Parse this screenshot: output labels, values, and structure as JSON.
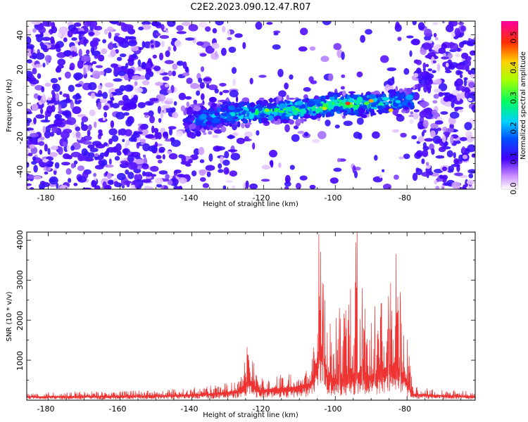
{
  "chart_data": [
    {
      "type": "heatmap",
      "title": "C2E2.2023.090.12.47.R07",
      "xlabel": "Height of straight line (km)",
      "ylabel": "Frequency (Hz)",
      "xlim": [
        -186,
        -61
      ],
      "ylim": [
        -50,
        48
      ],
      "xticks": [
        "-180",
        "-160",
        "-140",
        "-120",
        "-100",
        "-80"
      ],
      "yticks": [
        "40",
        "20",
        "0",
        "-20",
        "-40"
      ],
      "colorbar": {
        "label": "Normalized spectral amplitude",
        "range": [
          0.0,
          0.55
        ],
        "ticks": [
          "0.0",
          "0.1",
          "0.2",
          "0.3",
          "0.4",
          "0.5"
        ]
      },
      "band": [
        {
          "x": -186,
          "center": 0,
          "width": 45,
          "strength": 0.12
        },
        {
          "x": -140,
          "center": -10,
          "width": 12,
          "strength": 0.18
        },
        {
          "x": -130,
          "center": -6,
          "width": 9,
          "strength": 0.25
        },
        {
          "x": -120,
          "center": -5,
          "width": 8,
          "strength": 0.28
        },
        {
          "x": -110,
          "center": -3,
          "width": 8,
          "strength": 0.3
        },
        {
          "x": -100,
          "center": -1,
          "width": 8,
          "strength": 0.33
        },
        {
          "x": -90,
          "center": 0,
          "width": 8,
          "strength": 0.3
        },
        {
          "x": -80,
          "center": 2,
          "width": 8,
          "strength": 0.22
        },
        {
          "x": -61,
          "center": 0,
          "width": 45,
          "strength": 0.1
        }
      ],
      "grid": true
    },
    {
      "type": "line",
      "title": "",
      "xlabel": "Height of straight line (km)",
      "ylabel": "SNR (10 * v/v)",
      "xlim": [
        -186,
        -61
      ],
      "ylim": [
        0,
        4200
      ],
      "xticks": [
        "-180",
        "-160",
        "-140",
        "-120",
        "-100",
        "-80"
      ],
      "yticks": [
        "4000",
        "3000",
        "2000",
        "1000"
      ],
      "series": [
        {
          "color": "#ee3333",
          "envelope": [
            {
              "x": -186,
              "base": 90,
              "peak": 200
            },
            {
              "x": -150,
              "base": 110,
              "peak": 250
            },
            {
              "x": -135,
              "base": 160,
              "peak": 380
            },
            {
              "x": -127,
              "base": 230,
              "peak": 480
            },
            {
              "x": -124,
              "base": 500,
              "peak": 1300
            },
            {
              "x": -121,
              "base": 250,
              "peak": 560
            },
            {
              "x": -112,
              "base": 320,
              "peak": 700
            },
            {
              "x": -107,
              "base": 420,
              "peak": 1000
            },
            {
              "x": -105,
              "base": 1000,
              "peak": 2300
            },
            {
              "x": -104.3,
              "base": 1500,
              "peak": 4100
            },
            {
              "x": -102,
              "base": 600,
              "peak": 2300
            },
            {
              "x": -99,
              "base": 500,
              "peak": 2300
            },
            {
              "x": -94,
              "base": 700,
              "peak": 4200
            },
            {
              "x": -90,
              "base": 600,
              "peak": 2300
            },
            {
              "x": -86,
              "base": 800,
              "peak": 2500
            },
            {
              "x": -83,
              "base": 900,
              "peak": 3600
            },
            {
              "x": -80,
              "base": 500,
              "peak": 2300
            },
            {
              "x": -78.5,
              "base": 150,
              "peak": 350
            },
            {
              "x": -61,
              "base": 90,
              "peak": 230
            }
          ],
          "peaks": [
            {
              "x": -124.6,
              "y": 1330
            },
            {
              "x": -104.6,
              "y": 4150
            },
            {
              "x": -103.3,
              "y": 2900
            },
            {
              "x": -98.8,
              "y": 2300
            },
            {
              "x": -93.9,
              "y": 4200
            },
            {
              "x": -92.5,
              "y": 2800
            },
            {
              "x": -89,
              "y": 2350
            },
            {
              "x": -85.2,
              "y": 2600
            },
            {
              "x": -83.1,
              "y": 3650
            },
            {
              "x": -81.8,
              "y": 2400
            }
          ]
        }
      ],
      "grid": true
    }
  ]
}
